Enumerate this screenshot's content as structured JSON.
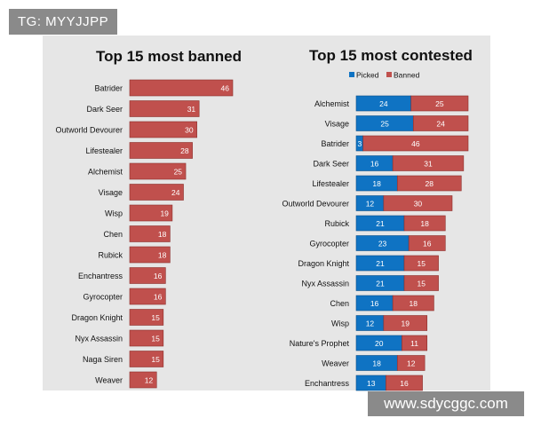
{
  "watermarks": {
    "top_left": "TG: MYYJJPP",
    "bottom_right": "www.sdycggc.com"
  },
  "colors": {
    "banned": "#c0504d",
    "picked": "#0f73c3",
    "background": "#e6e6e6"
  },
  "chart_data": [
    {
      "type": "bar",
      "title": "Top 15 most banned",
      "categories": [
        "Batrider",
        "Dark Seer",
        "Outworld Devourer",
        "Lifestealer",
        "Alchemist",
        "Visage",
        "Wisp",
        "Chen",
        "Rubick",
        "Enchantress",
        "Gyrocopter",
        "Dragon Knight",
        "Nyx Assassin",
        "Naga Siren",
        "Weaver"
      ],
      "values": [
        46,
        31,
        30,
        28,
        25,
        24,
        19,
        18,
        18,
        16,
        16,
        15,
        15,
        15,
        12
      ],
      "orientation": "horizontal",
      "xlim": [
        0,
        46
      ]
    },
    {
      "type": "bar",
      "stacked": true,
      "orientation": "horizontal",
      "title": "Top 15 most contested",
      "legend": {
        "placement": "top-left",
        "entries": [
          "Picked",
          "Banned"
        ]
      },
      "categories": [
        "Alchemist",
        "Visage",
        "Batrider",
        "Dark Seer",
        "Lifestealer",
        "Outworld Devourer",
        "Rubick",
        "Gyrocopter",
        "Dragon Knight",
        "Nyx Assassin",
        "Chen",
        "Wisp",
        "Nature's Prophet",
        "Weaver",
        "Enchantress"
      ],
      "series": [
        {
          "name": "Picked",
          "values": [
            24,
            25,
            3,
            16,
            18,
            12,
            21,
            23,
            21,
            21,
            16,
            12,
            20,
            18,
            13
          ]
        },
        {
          "name": "Banned",
          "values": [
            25,
            24,
            46,
            31,
            28,
            30,
            18,
            16,
            15,
            15,
            18,
            19,
            11,
            12,
            16
          ]
        }
      ],
      "xlim": [
        0,
        49
      ]
    }
  ]
}
